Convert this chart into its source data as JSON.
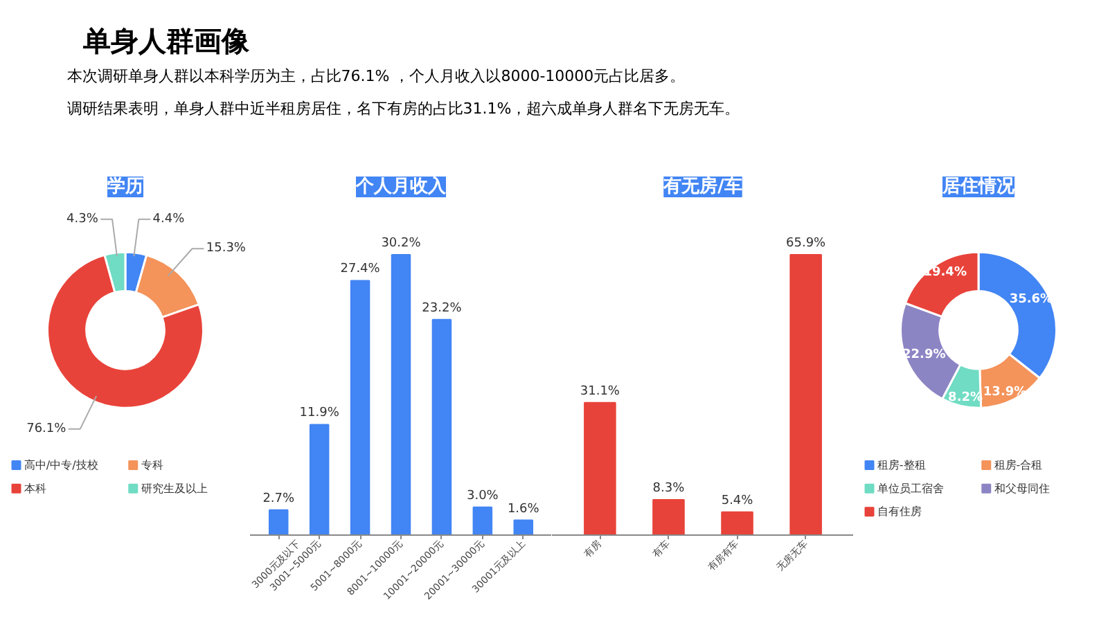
{
  "chart_data": [
    {
      "type": "other",
      "title": "单身人群画像",
      "annotations": [
        "本次调研单身人群以本科学历为主，占比76.1% ，个人月收入以8000-10000元占比居多。",
        "调研结果表明，单身人群中近半租房居住，名下有房的占比31.1%，超六成单身人群名下无房无车。"
      ]
    },
    {
      "type": "donut",
      "title": "学历",
      "categories": [
        "高中/中专/技校",
        "专科",
        "本科",
        "研究生及以上"
      ],
      "values": [
        4.4,
        15.3,
        76.1,
        4.3
      ],
      "colors": [
        "#4285f4",
        "#f4935a",
        "#e8433a",
        "#6fdcc3"
      ],
      "value_labels": [
        "4.4%",
        "15.3%",
        "76.1%",
        "4.3%"
      ],
      "legend": "bottom"
    },
    {
      "type": "bar",
      "title": "个人月收入",
      "categories": [
        "3000元及以下",
        "3001~5000元",
        "5001~8000元",
        "8001~10000元",
        "10001~20000元",
        "20001~30000元",
        "30001元及以上"
      ],
      "values": [
        2.7,
        11.9,
        27.4,
        30.2,
        23.2,
        3.0,
        1.6
      ],
      "color": "#4285f4",
      "value_labels": [
        "2.7%",
        "11.9%",
        "27.4%",
        "30.2%",
        "23.2%",
        "3.0%",
        "1.6%"
      ],
      "tick_labels": "x"
    },
    {
      "type": "bar",
      "title": "有无房/车",
      "categories": [
        "有房",
        "有车",
        "有房有车",
        "无房无车"
      ],
      "values": [
        31.1,
        8.3,
        5.4,
        65.9
      ],
      "color": "#e8433a",
      "value_labels": [
        "31.1%",
        "8.3%",
        "5.4%",
        "65.9%"
      ],
      "tick_labels": "x"
    },
    {
      "type": "donut",
      "title": "居住情况",
      "categories": [
        "租房-整租",
        "租房-合租",
        "单位员工宿舍",
        "和父母同住",
        "自有住房"
      ],
      "values": [
        35.6,
        13.9,
        8.2,
        22.9,
        19.4
      ],
      "colors": [
        "#4285f4",
        "#f4935a",
        "#6fdcc3",
        "#8c85c4",
        "#e8433a"
      ],
      "value_labels": [
        "35.6%",
        "13.9%",
        "8.2%",
        "22.9%",
        "19.4%"
      ],
      "legend": "bottom"
    }
  ]
}
